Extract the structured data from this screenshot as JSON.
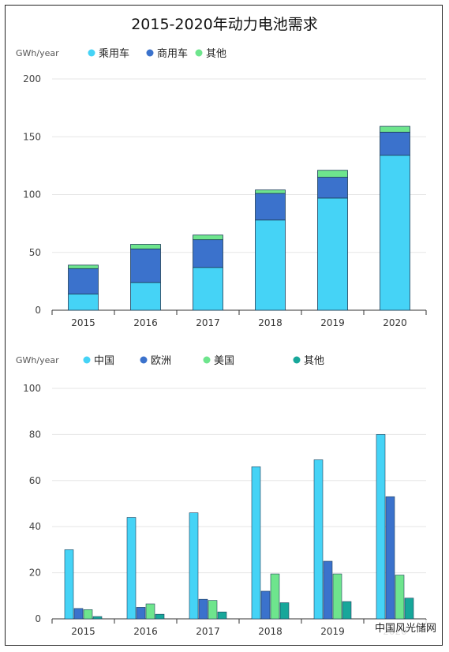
{
  "title": "2015-2020年动力电池需求",
  "watermark": "中国风光储网",
  "chart_data": [
    {
      "type": "bar",
      "stacked": true,
      "ylabel": "GWh/year",
      "ylim": [
        0,
        200
      ],
      "yticks": [
        0,
        50,
        100,
        150,
        200
      ],
      "categories": [
        "2015",
        "2016",
        "2017",
        "2018",
        "2019",
        "2020"
      ],
      "legend_position": "top-left",
      "grid": true,
      "series": [
        {
          "name": "乘用车",
          "color": "#45d3f6",
          "values": [
            14,
            24,
            37,
            78,
            97,
            134
          ]
        },
        {
          "name": "商用车",
          "color": "#3b72cc",
          "values": [
            22,
            29,
            24,
            23,
            18,
            20
          ]
        },
        {
          "name": "其他",
          "color": "#6ee58d",
          "values": [
            3,
            4,
            4,
            3,
            6,
            5
          ]
        }
      ]
    },
    {
      "type": "bar",
      "stacked": false,
      "ylabel": "GWh/year",
      "ylim": [
        0,
        100
      ],
      "yticks": [
        0,
        20,
        40,
        60,
        80,
        100
      ],
      "categories": [
        "2015",
        "2016",
        "2017",
        "2018",
        "2019",
        "2020"
      ],
      "legend_position": "top-left",
      "grid": true,
      "series": [
        {
          "name": "中国",
          "color": "#45d3f6",
          "values": [
            30,
            44,
            46,
            66,
            69,
            80
          ]
        },
        {
          "name": "欧洲",
          "color": "#3b72cc",
          "values": [
            4.5,
            5,
            8.5,
            12,
            25,
            53
          ]
        },
        {
          "name": "美国",
          "color": "#6ee58d",
          "values": [
            4,
            6.5,
            8,
            19.5,
            19.5,
            19
          ]
        },
        {
          "name": "其他",
          "color": "#17a79a",
          "values": [
            1,
            2,
            3,
            7,
            7.5,
            9
          ]
        }
      ]
    }
  ]
}
